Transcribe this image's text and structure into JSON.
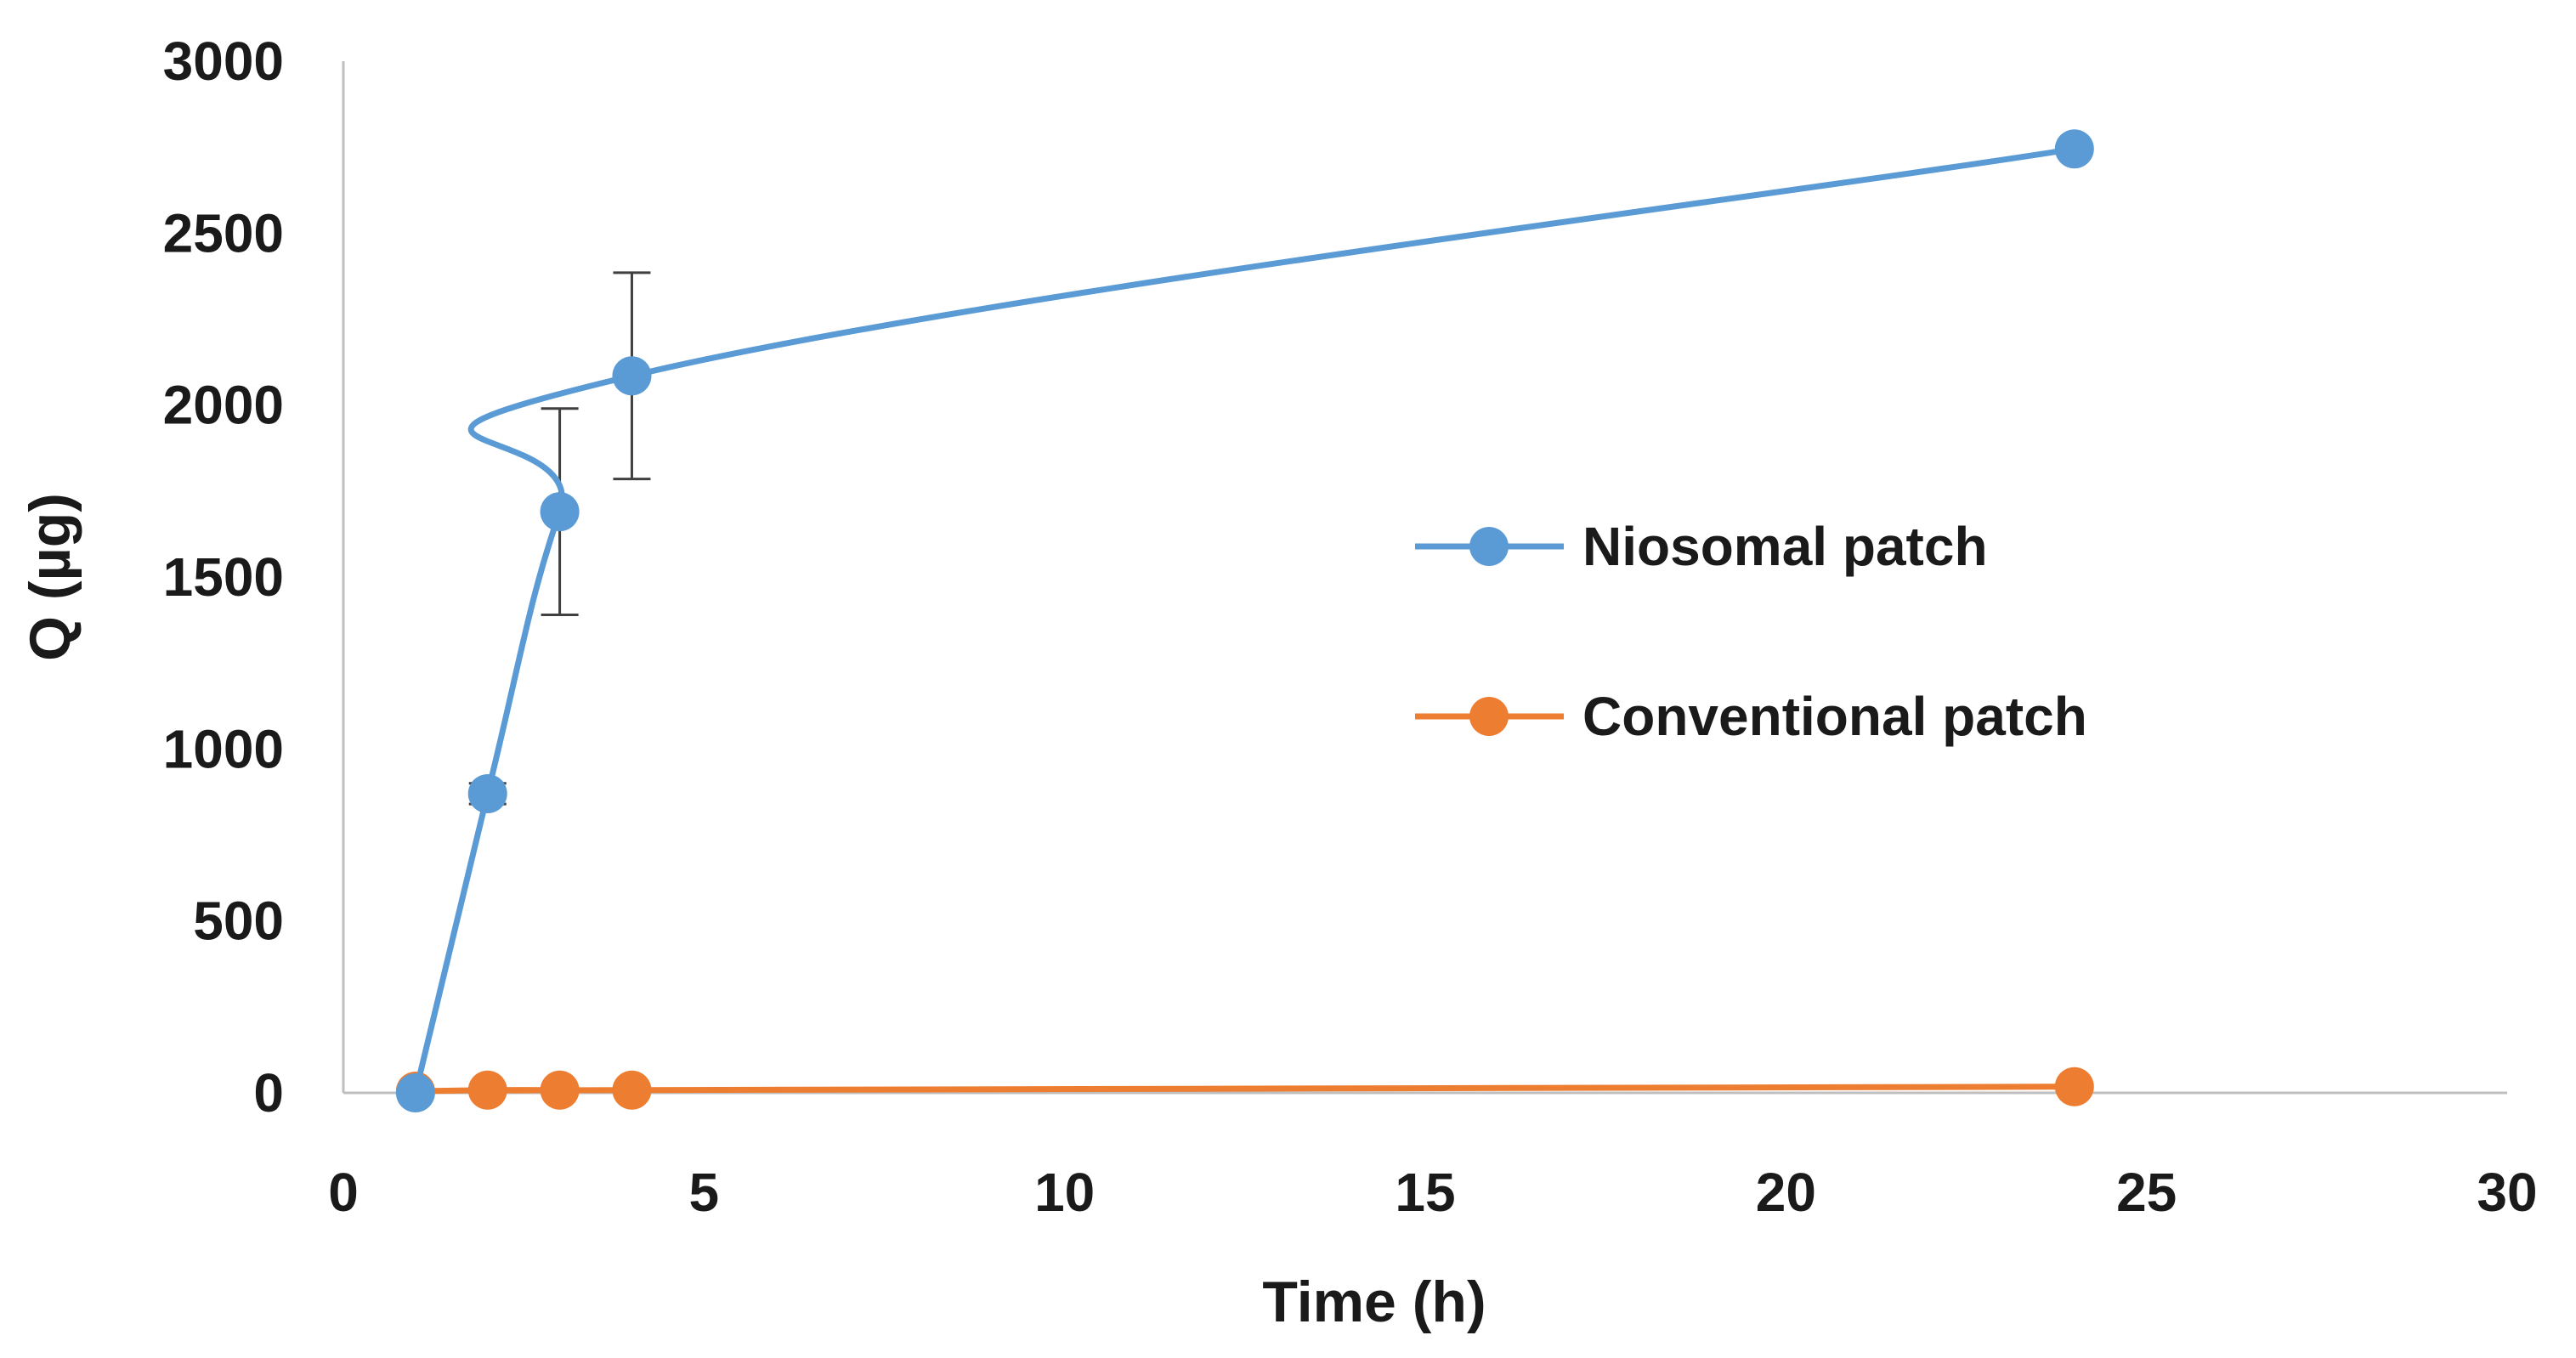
{
  "chart_data": {
    "type": "line",
    "title": "",
    "xlabel": "Time (h)",
    "ylabel": "Q (µg)",
    "xlim": [
      0,
      30
    ],
    "ylim": [
      0,
      3000
    ],
    "xticks": [
      0,
      5,
      10,
      15,
      20,
      25,
      30
    ],
    "yticks": [
      0,
      500,
      1000,
      1500,
      2000,
      2500,
      3000
    ],
    "grid": false,
    "legend_position": "center-right",
    "series": [
      {
        "name": "Niosomal patch",
        "color": "#5B9BD5",
        "x": [
          1,
          2,
          3,
          4,
          24
        ],
        "y": [
          0,
          870,
          1690,
          2085,
          2745
        ],
        "error": [
          0,
          30,
          300,
          300,
          0
        ]
      },
      {
        "name": "Conventional patch",
        "color": "#ED7D31",
        "x": [
          1,
          2,
          3,
          4,
          24
        ],
        "y": [
          5,
          8,
          8,
          8,
          18
        ],
        "error": [
          0,
          0,
          0,
          0,
          0
        ]
      }
    ]
  }
}
